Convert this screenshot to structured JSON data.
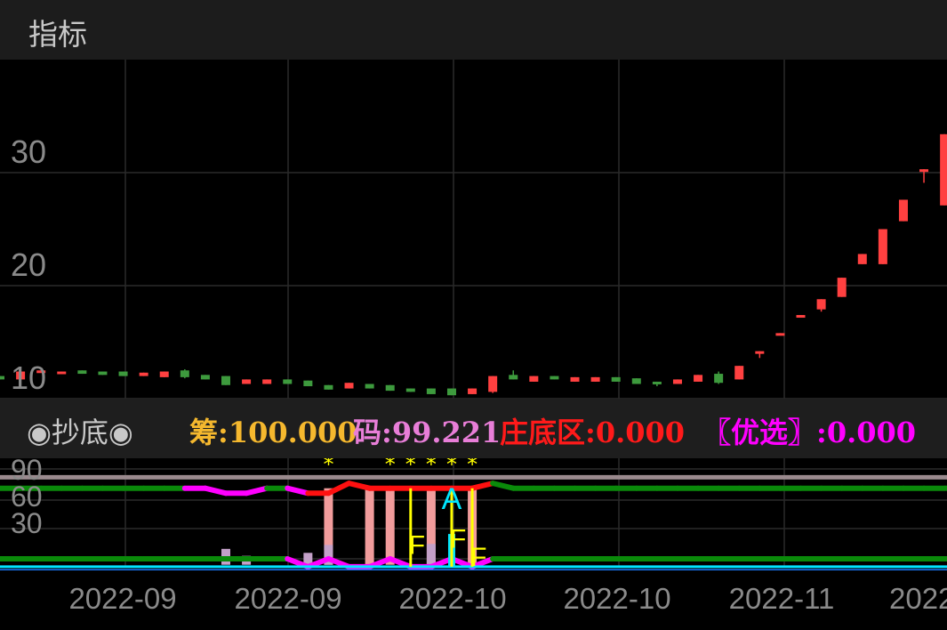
{
  "header": {
    "title": "指标"
  },
  "legend": {
    "name": "◉抄底◉",
    "items": [
      {
        "label": "筹:100.000",
        "color": "#f5b82e"
      },
      {
        "label": "码:99.221",
        "color": "#e87ed8"
      },
      {
        "label": "庄底区:0.000",
        "color": "#ff1a1a"
      },
      {
        "label": "〖优选〗:0.000",
        "color": "#ff00ff"
      }
    ]
  },
  "chart_data": [
    {
      "type": "candlestick",
      "y_ticks": [
        "30",
        "20",
        "10"
      ],
      "x_ticks": [
        "2022-09",
        "2022-09",
        "2022-10",
        "2022-10",
        "2022-11",
        "2022"
      ],
      "colors": {
        "up": "#ff4040",
        "down": "#3d9a3d"
      },
      "ohlc": [
        [
          12.0,
          12.0,
          11.7,
          11.7
        ],
        [
          11.7,
          12.4,
          11.7,
          12.4
        ],
        [
          12.3,
          12.5,
          12.3,
          12.5
        ],
        [
          12.3,
          12.4,
          12.3,
          12.4
        ],
        [
          12.5,
          12.5,
          12.2,
          12.2
        ],
        [
          12.4,
          12.4,
          12.1,
          12.1
        ],
        [
          12.4,
          12.4,
          12.0,
          12.0
        ],
        [
          12.0,
          12.3,
          12.0,
          12.3
        ],
        [
          11.9,
          12.4,
          11.9,
          12.4
        ],
        [
          12.5,
          12.6,
          11.8,
          11.9
        ],
        [
          12.1,
          12.1,
          11.7,
          11.7
        ],
        [
          12.0,
          12.0,
          11.2,
          11.2
        ],
        [
          11.3,
          11.7,
          11.3,
          11.7
        ],
        [
          11.3,
          11.7,
          11.3,
          11.7
        ],
        [
          11.7,
          11.7,
          11.3,
          11.3
        ],
        [
          11.6,
          11.6,
          11.1,
          11.1
        ],
        [
          11.2,
          11.2,
          10.8,
          10.8
        ],
        [
          10.9,
          11.4,
          10.9,
          11.4
        ],
        [
          11.3,
          11.3,
          10.9,
          10.9
        ],
        [
          11.2,
          11.2,
          10.7,
          10.7
        ],
        [
          10.9,
          10.9,
          10.6,
          10.6
        ],
        [
          10.9,
          10.9,
          10.4,
          10.4
        ],
        [
          10.9,
          10.9,
          10.3,
          10.3
        ],
        [
          10.4,
          10.9,
          10.4,
          10.9
        ],
        [
          10.6,
          12.0,
          10.5,
          12.0
        ],
        [
          12.1,
          12.5,
          11.7,
          11.7
        ],
        [
          11.5,
          12.0,
          11.5,
          12.0
        ],
        [
          12.0,
          12.0,
          11.7,
          11.7
        ],
        [
          11.5,
          11.9,
          11.5,
          11.9
        ],
        [
          11.5,
          11.9,
          11.5,
          11.9
        ],
        [
          11.9,
          11.9,
          11.5,
          11.5
        ],
        [
          11.8,
          11.8,
          11.3,
          11.3
        ],
        [
          11.5,
          11.5,
          11.1,
          11.3
        ],
        [
          11.3,
          11.7,
          11.3,
          11.7
        ],
        [
          11.5,
          12.1,
          11.5,
          12.1
        ],
        [
          12.2,
          12.4,
          11.3,
          11.4
        ],
        [
          11.7,
          12.9,
          11.7,
          12.9
        ],
        [
          14.0,
          14.2,
          13.6,
          14.2
        ],
        [
          15.6,
          15.8,
          15.6,
          15.8
        ],
        [
          17.2,
          17.4,
          17.2,
          17.4
        ],
        [
          17.9,
          18.8,
          17.7,
          18.8
        ],
        [
          19.0,
          20.7,
          19.0,
          20.7
        ],
        [
          21.9,
          22.8,
          21.9,
          22.8
        ],
        [
          21.9,
          25.0,
          21.9,
          25.0
        ],
        [
          25.7,
          27.6,
          25.7,
          27.6
        ],
        [
          30.1,
          30.3,
          29.1,
          30.3
        ],
        [
          27.1,
          33.4,
          27.1,
          33.4
        ]
      ]
    },
    {
      "type": "indicator",
      "y_ticks": [
        "90",
        "60",
        "30"
      ],
      "ref_line": 82,
      "upper_line": [
        71,
        71,
        71,
        71,
        71,
        71,
        71,
        71,
        71,
        71,
        71,
        66,
        66,
        71,
        71,
        66,
        66,
        76,
        71,
        71,
        71,
        71,
        71,
        71,
        76,
        71,
        71,
        71,
        71,
        71,
        71,
        71,
        71,
        71,
        71,
        71,
        71,
        71,
        71,
        71,
        71,
        71,
        71,
        71,
        71,
        71,
        71
      ],
      "upper_colors": [
        "g",
        "g",
        "g",
        "g",
        "g",
        "g",
        "g",
        "g",
        "g",
        "g",
        "m",
        "m",
        "m",
        "g",
        "g",
        "m",
        "r",
        "r",
        "r",
        "r",
        "r",
        "r",
        "r",
        "r",
        "g",
        "g",
        "g",
        "g",
        "g",
        "g",
        "g",
        "g",
        "g",
        "g",
        "g",
        "g",
        "g",
        "g",
        "g",
        "g",
        "g",
        "g",
        "g",
        "g",
        "g",
        "g",
        "g"
      ],
      "lower_line": [
        0,
        0,
        0,
        0,
        0,
        0,
        0,
        0,
        0,
        0,
        0,
        0,
        0,
        0,
        0,
        -8,
        0,
        -8,
        -8,
        0,
        -8,
        -8,
        0,
        -8,
        0,
        0,
        0,
        0,
        0,
        0,
        0,
        0,
        0,
        0,
        0,
        0,
        0,
        0,
        0,
        0,
        0,
        0,
        0,
        0,
        0,
        0,
        0
      ],
      "lower_colors": [
        "g",
        "g",
        "g",
        "g",
        "g",
        "g",
        "g",
        "g",
        "g",
        "g",
        "g",
        "g",
        "g",
        "g",
        "g",
        "m",
        "m",
        "m",
        "m",
        "m",
        "m",
        "m",
        "m",
        "m",
        "g",
        "g",
        "g",
        "g",
        "g",
        "g",
        "g",
        "g",
        "g",
        "g",
        "g",
        "g",
        "g",
        "g",
        "g",
        "g",
        "g",
        "g",
        "g",
        "g",
        "g",
        "g",
        "g"
      ],
      "pink_bars": [
        16,
        18,
        19,
        21,
        23
      ],
      "purple_bars": [
        {
          "i": 11,
          "v": 10
        },
        {
          "i": 12,
          "v": 3
        },
        {
          "i": 15,
          "v": 6
        },
        {
          "i": 16,
          "v": 14
        },
        {
          "i": 21,
          "v": 15
        }
      ],
      "yellow_lines": [
        20,
        22,
        23
      ],
      "stars": [
        16,
        19,
        20,
        21,
        22,
        23
      ],
      "star_label": "*",
      "a_marks": [
        22
      ],
      "a_label": "A",
      "f_marks": [
        {
          "i": 20,
          "v": 14
        },
        {
          "i": 22,
          "v": 20
        },
        {
          "i": 23,
          "v": 2
        }
      ],
      "f_label": "F",
      "cyan_bars": [
        {
          "i": 22,
          "v": 25
        }
      ],
      "colors": {
        "g": "#0a8a0a",
        "m": "#ff00ff",
        "r": "#ff1010",
        "pink": "#f19c9c",
        "purple": "#c3a0c8",
        "yellow": "#ffff00",
        "cyan": "#00e5ff",
        "ref": "#9a8a8e"
      }
    }
  ]
}
